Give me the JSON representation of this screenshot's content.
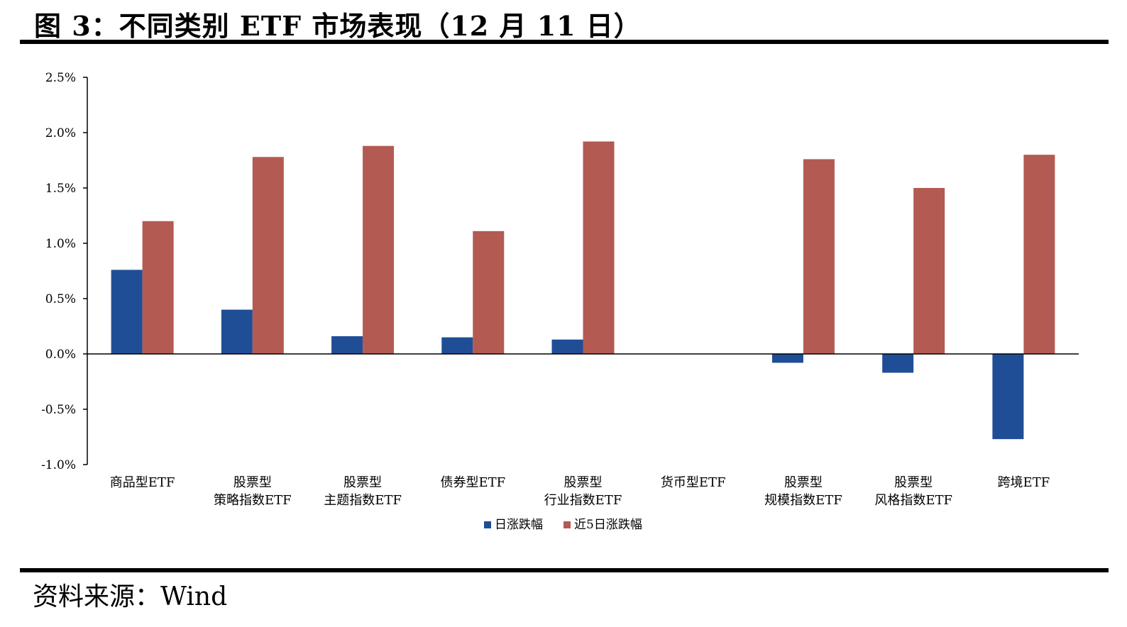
{
  "header": {
    "title": "图 3：不同类别 ETF 市场表现（12 月 11 日）"
  },
  "footer": {
    "source": "资料来源：Wind"
  },
  "colors": {
    "daily": "#1f4e96",
    "five_day": "#b35a52",
    "axis": "#000000"
  },
  "chart_data": {
    "type": "bar",
    "title": "",
    "xlabel": "",
    "ylabel": "",
    "ylim": [
      -0.01,
      0.025
    ],
    "yticks": [
      {
        "value": 0.025,
        "label": "2.5%"
      },
      {
        "value": 0.02,
        "label": "2.0%"
      },
      {
        "value": 0.015,
        "label": "1.5%"
      },
      {
        "value": 0.01,
        "label": "1.0%"
      },
      {
        "value": 0.005,
        "label": "0.5%"
      },
      {
        "value": 0.0,
        "label": "0.0%"
      },
      {
        "value": -0.005,
        "label": "-0.5%"
      },
      {
        "value": -0.01,
        "label": "-1.0%"
      }
    ],
    "categories": [
      [
        "商品型ETF"
      ],
      [
        "股票型",
        "策略指数ETF"
      ],
      [
        "股票型",
        "主题指数ETF"
      ],
      [
        "债券型ETF"
      ],
      [
        "股票型",
        "行业指数ETF"
      ],
      [
        "货币型ETF"
      ],
      [
        "股票型",
        "规模指数ETF"
      ],
      [
        "股票型",
        "风格指数ETF"
      ],
      [
        "跨境ETF"
      ]
    ],
    "series": [
      {
        "name": "日涨跌幅",
        "color": "#1f4e96",
        "values": [
          0.0076,
          0.004,
          0.0016,
          0.0015,
          0.0013,
          0.0,
          -0.0008,
          -0.0017,
          -0.0077
        ]
      },
      {
        "name": "近5日涨跌幅",
        "color": "#b35a52",
        "values": [
          0.012,
          0.0178,
          0.0188,
          0.0111,
          0.0192,
          0.0,
          0.0176,
          0.015,
          0.018
        ]
      }
    ],
    "grid": false,
    "legend_position": "bottom-center"
  }
}
